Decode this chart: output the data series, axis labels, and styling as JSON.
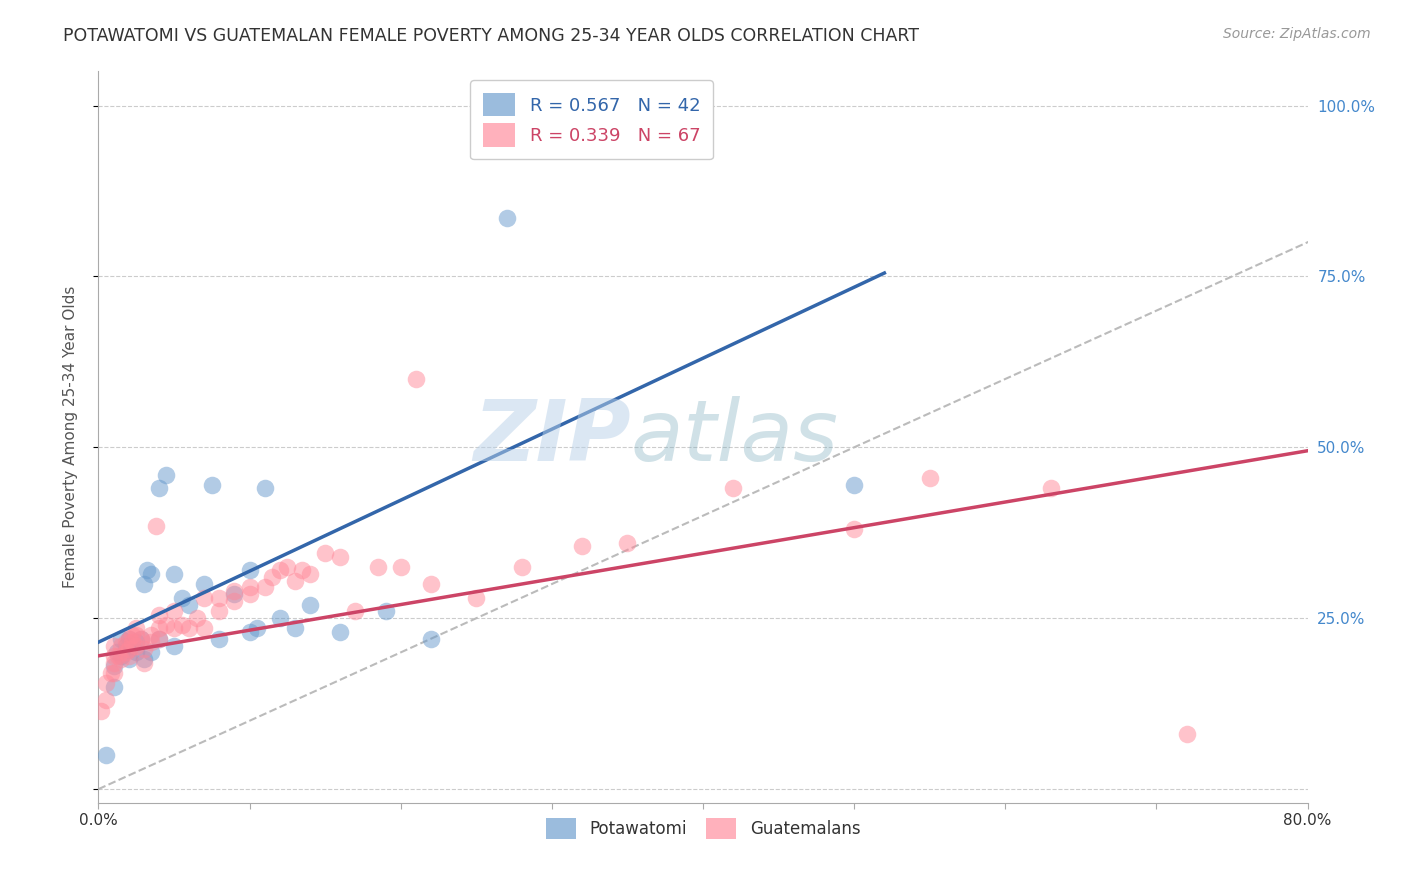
{
  "title": "POTAWATOMI VS GUATEMALAN FEMALE POVERTY AMONG 25-34 YEAR OLDS CORRELATION CHART",
  "source": "Source: ZipAtlas.com",
  "ylabel": "Female Poverty Among 25-34 Year Olds",
  "xlim": [
    0.0,
    0.8
  ],
  "ylim": [
    -0.02,
    1.05
  ],
  "legend_r1": "R = 0.567",
  "legend_n1": "N = 42",
  "legend_r2": "R = 0.339",
  "legend_n2": "N = 67",
  "color_blue": "#6699CC",
  "color_pink": "#FF8899",
  "color_line_blue": "#3366AA",
  "color_line_pink": "#CC4466",
  "color_diagonal": "#BBBBBB",
  "watermark_zip": "ZIP",
  "watermark_atlas": "atlas",
  "blue_line_x0": 0.0,
  "blue_line_y0": 0.215,
  "blue_line_x1": 0.52,
  "blue_line_y1": 0.755,
  "pink_line_x0": 0.0,
  "pink_line_y0": 0.195,
  "pink_line_x1": 0.8,
  "pink_line_y1": 0.495,
  "potawatomi_x": [
    0.005,
    0.01,
    0.01,
    0.012,
    0.015,
    0.015,
    0.018,
    0.02,
    0.02,
    0.02,
    0.022,
    0.025,
    0.025,
    0.028,
    0.03,
    0.03,
    0.032,
    0.035,
    0.035,
    0.04,
    0.04,
    0.045,
    0.05,
    0.05,
    0.055,
    0.06,
    0.07,
    0.075,
    0.08,
    0.09,
    0.1,
    0.1,
    0.105,
    0.11,
    0.12,
    0.13,
    0.14,
    0.16,
    0.19,
    0.22,
    0.27,
    0.5
  ],
  "potawatomi_y": [
    0.05,
    0.15,
    0.18,
    0.2,
    0.195,
    0.22,
    0.21,
    0.19,
    0.205,
    0.22,
    0.21,
    0.2,
    0.215,
    0.22,
    0.19,
    0.3,
    0.32,
    0.2,
    0.315,
    0.22,
    0.44,
    0.46,
    0.21,
    0.315,
    0.28,
    0.27,
    0.3,
    0.445,
    0.22,
    0.285,
    0.23,
    0.32,
    0.235,
    0.44,
    0.25,
    0.235,
    0.27,
    0.23,
    0.26,
    0.22,
    0.835,
    0.445
  ],
  "guatemalan_x": [
    0.002,
    0.005,
    0.005,
    0.008,
    0.01,
    0.01,
    0.01,
    0.01,
    0.013,
    0.015,
    0.015,
    0.018,
    0.018,
    0.02,
    0.02,
    0.02,
    0.022,
    0.022,
    0.025,
    0.025,
    0.025,
    0.028,
    0.03,
    0.03,
    0.035,
    0.035,
    0.038,
    0.04,
    0.04,
    0.04,
    0.045,
    0.05,
    0.05,
    0.055,
    0.06,
    0.065,
    0.07,
    0.07,
    0.08,
    0.08,
    0.09,
    0.09,
    0.1,
    0.1,
    0.11,
    0.115,
    0.12,
    0.125,
    0.13,
    0.135,
    0.14,
    0.15,
    0.16,
    0.17,
    0.185,
    0.2,
    0.21,
    0.22,
    0.25,
    0.28,
    0.32,
    0.35,
    0.42,
    0.5,
    0.55,
    0.63,
    0.72
  ],
  "guatemalan_y": [
    0.115,
    0.13,
    0.155,
    0.17,
    0.17,
    0.185,
    0.195,
    0.21,
    0.195,
    0.19,
    0.21,
    0.2,
    0.215,
    0.195,
    0.205,
    0.22,
    0.215,
    0.225,
    0.21,
    0.225,
    0.235,
    0.22,
    0.185,
    0.205,
    0.215,
    0.225,
    0.385,
    0.22,
    0.235,
    0.255,
    0.24,
    0.235,
    0.26,
    0.24,
    0.235,
    0.25,
    0.235,
    0.28,
    0.26,
    0.28,
    0.275,
    0.29,
    0.285,
    0.295,
    0.295,
    0.31,
    0.32,
    0.325,
    0.305,
    0.32,
    0.315,
    0.345,
    0.34,
    0.26,
    0.325,
    0.325,
    0.6,
    0.3,
    0.28,
    0.325,
    0.355,
    0.36,
    0.44,
    0.38,
    0.455,
    0.44,
    0.08
  ],
  "background_color": "#FFFFFF",
  "grid_color": "#CCCCCC"
}
